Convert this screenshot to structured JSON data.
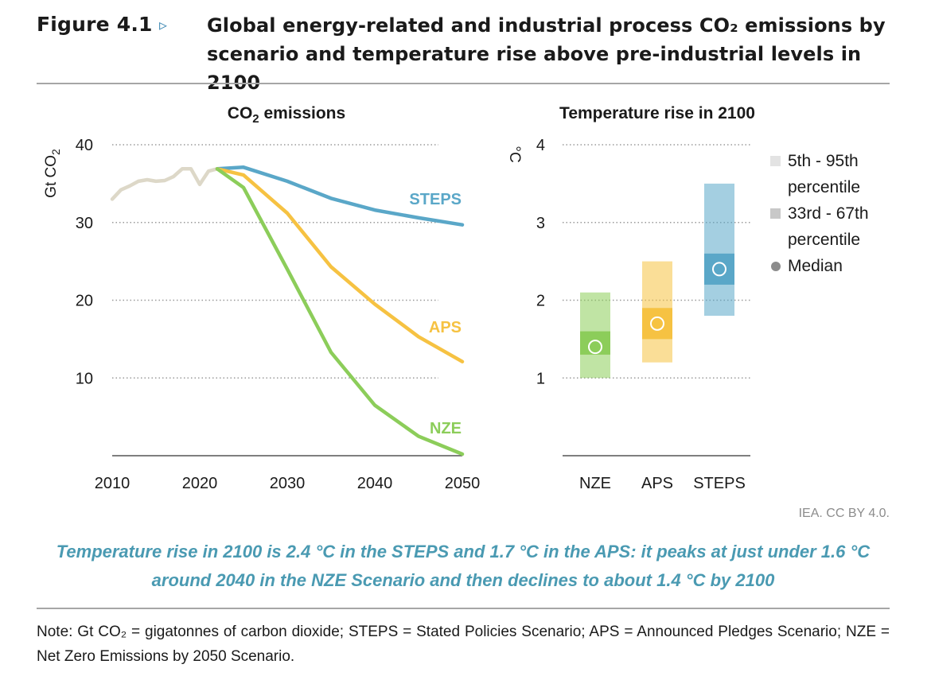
{
  "header": {
    "figure_label": "Figure 4.1",
    "title": "Global energy-related and industrial process CO₂ emissions by scenario and temperature rise above pre-industrial levels in 2100"
  },
  "credit": "IEA. CC BY 4.0.",
  "caption": "Temperature rise in 2100 is 2.4 °C in the STEPS and 1.7 °C in the APS: it peaks at just under 1.6 °C around 2040 in the NZE Scenario and then declines to about 1.4 °C by 2100",
  "note": "Note: Gt CO₂ = gigatonnes of carbon dioxide; STEPS = Stated Policies Scenario; APS = Announced Pledges Scenario; NZE = Net Zero Emissions by 2050 Scenario.",
  "colors": {
    "history": "#ddd8c8",
    "STEPS": "#5aa7c8",
    "APS": "#f6c242",
    "NZE": "#8ccd5a",
    "caption": "#4a9ab2"
  },
  "chart_data": [
    {
      "type": "line",
      "title": "CO₂ emissions",
      "ylabel": "Gt CO₂",
      "xlim": [
        2010,
        2050
      ],
      "ylim": [
        0,
        40
      ],
      "xticks": [
        2010,
        2020,
        2030,
        2040,
        2050
      ],
      "yticks": [
        10,
        20,
        30,
        40
      ],
      "grid": true,
      "series": [
        {
          "name": "",
          "color": "#ddd8c8",
          "x": [
            2010,
            2011,
            2012,
            2013,
            2014,
            2015,
            2016,
            2017,
            2018,
            2019,
            2020,
            2021,
            2022
          ],
          "y": [
            33.0,
            34.2,
            34.7,
            35.3,
            35.5,
            35.3,
            35.4,
            35.9,
            36.9,
            36.9,
            34.9,
            36.6,
            36.9
          ]
        },
        {
          "name": "STEPS",
          "color": "#5aa7c8",
          "x": [
            2022,
            2025,
            2030,
            2035,
            2040,
            2045,
            2050
          ],
          "y": [
            36.9,
            37.1,
            35.3,
            33.1,
            31.6,
            30.6,
            29.7
          ]
        },
        {
          "name": "APS",
          "color": "#f6c242",
          "x": [
            2022,
            2025,
            2030,
            2035,
            2040,
            2045,
            2050
          ],
          "y": [
            36.9,
            36.1,
            31.2,
            24.3,
            19.5,
            15.3,
            12.1
          ]
        },
        {
          "name": "NZE",
          "color": "#8ccd5a",
          "x": [
            2022,
            2025,
            2030,
            2035,
            2040,
            2045,
            2050
          ],
          "y": [
            36.9,
            34.5,
            24.0,
            13.3,
            6.5,
            2.5,
            0.2
          ]
        }
      ]
    },
    {
      "type": "box",
      "title": "Temperature rise in 2100",
      "ylabel": "°C",
      "ylim": [
        0,
        4
      ],
      "yticks": [
        1,
        2,
        3,
        4
      ],
      "grid": true,
      "categories": [
        "NZE",
        "APS",
        "STEPS"
      ],
      "series": [
        {
          "name": "5th - 95th percentile",
          "low": [
            1.0,
            1.2,
            1.8
          ],
          "high": [
            2.1,
            2.5,
            3.5
          ]
        },
        {
          "name": "33rd - 67th percentile",
          "low": [
            1.3,
            1.5,
            2.2
          ],
          "high": [
            1.6,
            1.9,
            2.6
          ]
        },
        {
          "name": "Median",
          "values": [
            1.4,
            1.7,
            2.4
          ]
        }
      ],
      "colors": [
        "#8ccd5a",
        "#f6c242",
        "#5aa7c8"
      ],
      "legend": [
        "5th - 95th percentile",
        "33rd - 67th percentile",
        "Median"
      ],
      "legend_position": "right"
    }
  ]
}
